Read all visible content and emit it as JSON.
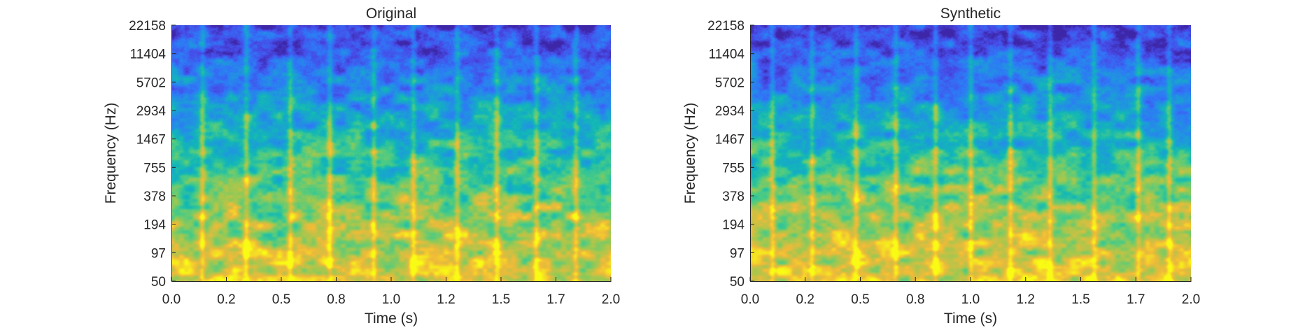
{
  "chart_data": [
    {
      "type": "heatmap",
      "title": "Original",
      "xlabel": "Time (s)",
      "ylabel": "Frequency (Hz)",
      "xlim": [
        0.0,
        2.0
      ],
      "xticks": [
        "0.0",
        "0.2",
        "0.5",
        "0.8",
        "1.0",
        "1.2",
        "1.5",
        "1.7",
        "2.0"
      ],
      "xtick_values": [
        0.0,
        0.25,
        0.5,
        0.75,
        1.0,
        1.25,
        1.5,
        1.75,
        2.0
      ],
      "ylim": [
        50,
        22158
      ],
      "yscale": "log",
      "yticks": [
        "50",
        "97",
        "194",
        "378",
        "755",
        "1467",
        "2934",
        "5702",
        "11404",
        "22158"
      ],
      "colormap": "parula",
      "grid": false
    },
    {
      "type": "heatmap",
      "title": "Synthetic",
      "xlabel": "Time (s)",
      "ylabel": "Frequency (Hz)",
      "xlim": [
        0.0,
        2.0
      ],
      "xticks": [
        "0.0",
        "0.2",
        "0.5",
        "0.8",
        "1.0",
        "1.2",
        "1.5",
        "1.7",
        "2.0"
      ],
      "xtick_values": [
        0.0,
        0.25,
        0.5,
        0.75,
        1.0,
        1.25,
        1.5,
        1.75,
        2.0
      ],
      "ylim": [
        50,
        22158
      ],
      "yscale": "log",
      "yticks": [
        "50",
        "97",
        "194",
        "378",
        "755",
        "1467",
        "2934",
        "5702",
        "11404",
        "22158"
      ],
      "colormap": "parula",
      "grid": false
    }
  ]
}
